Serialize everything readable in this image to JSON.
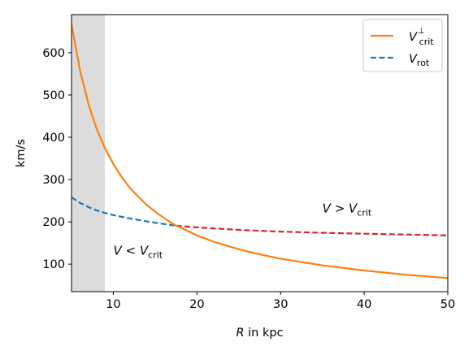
{
  "chart_data": {
    "type": "line",
    "xlabel": {
      "var": "R",
      "text": " in kpc"
    },
    "ylabel": "km/s",
    "xlim": [
      5,
      50
    ],
    "ylim": [
      35,
      690
    ],
    "xticks": [
      10,
      20,
      30,
      40,
      50
    ],
    "yticks": [
      100,
      200,
      300,
      400,
      500,
      600
    ],
    "grid": false,
    "legend_position": "top-right",
    "shaded_region": {
      "x_range": [
        5,
        9
      ],
      "color": "#dcdcdc"
    },
    "intersection_x": 17.5,
    "series": [
      {
        "name": "V_crit^⊥",
        "legend": {
          "main": "V",
          "sub": "crit",
          "sup": "⊥"
        },
        "style": "solid",
        "color": "#ff7f0e",
        "x": [
          5,
          6,
          7,
          8,
          9,
          10,
          11,
          12,
          13,
          14,
          15,
          16,
          17,
          17.5,
          18,
          20,
          22,
          24,
          26,
          28,
          30,
          35,
          40,
          45,
          50
        ],
        "y": [
          668,
          559,
          480,
          420,
          374,
          337,
          306,
          280,
          259,
          240,
          224,
          210,
          197,
          191,
          187,
          168,
          153,
          141,
          130,
          121,
          113,
          97,
          85,
          75,
          67
        ]
      },
      {
        "name": "V_rot",
        "legend": {
          "main": "V",
          "sub": "rot"
        },
        "style": "dashed",
        "colors": {
          "below_crit": "#1f77b4",
          "above_crit": "#d62728"
        },
        "x": [
          5,
          6,
          7,
          8,
          9,
          10,
          12,
          14,
          16,
          17.5,
          20,
          25,
          30,
          35,
          40,
          45,
          50
        ],
        "y": [
          258,
          245,
          235,
          227,
          221,
          216,
          208,
          201,
          195,
          191,
          187,
          181,
          177,
          174,
          172,
          170,
          168
        ]
      }
    ],
    "annotations": [
      {
        "main": "V",
        "op": " < ",
        "rhs": "V",
        "sub": "crit",
        "x": 10,
        "y": 122
      },
      {
        "main": "V",
        "op": " > ",
        "rhs": "V",
        "sub": "crit",
        "x": 35,
        "y": 222
      }
    ]
  }
}
